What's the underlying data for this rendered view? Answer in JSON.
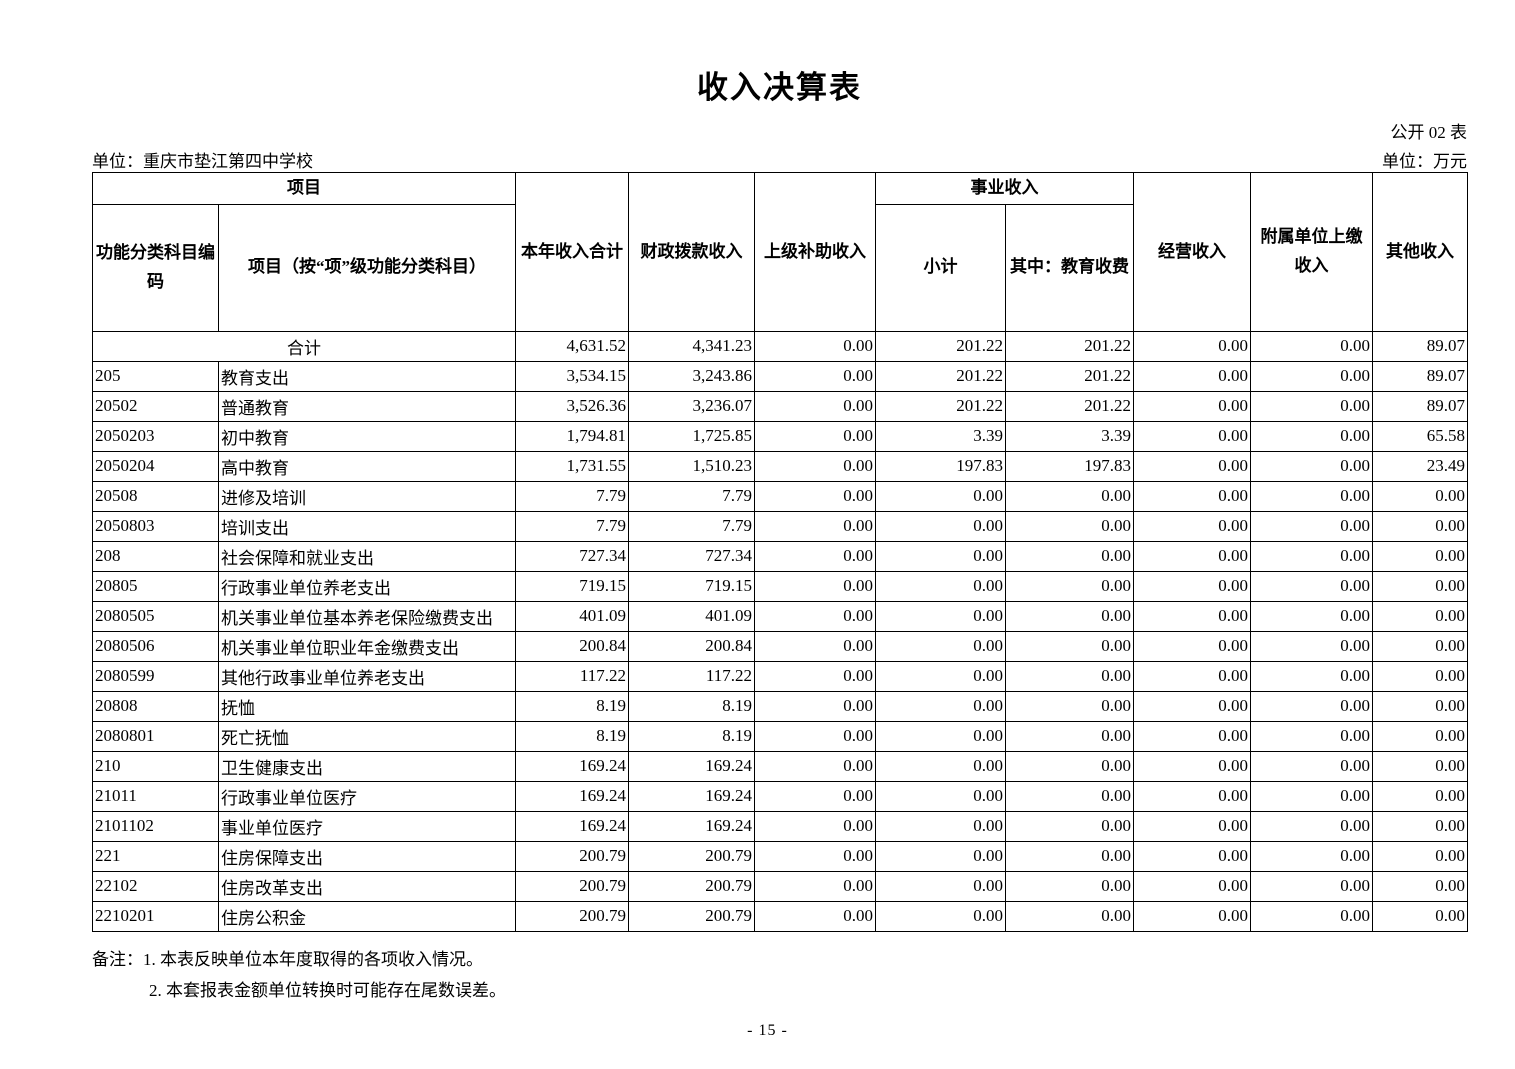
{
  "page": {
    "title": "收入决算表",
    "table_code": "公开 02 表",
    "unit_left": "单位：重庆市垫江第四中学校",
    "unit_right": "单位：万元",
    "notes": [
      "备注：1. 本表反映单位本年度取得的各项收入情况。",
      "2. 本套报表金额单位转换时可能存在尾数误差。"
    ],
    "page_number": "- 15 -"
  },
  "table": {
    "header": {
      "project_group": "项目",
      "code_col": "功能分类科目编码",
      "project_col": "项目（按“项”级功能分类科目）",
      "total_col": "本年收入合计",
      "fiscal_col": "财政拨款收入",
      "superior_col": "上级补助收入",
      "business_group": "事业收入",
      "subtotal_col": "小计",
      "education_fee_col": "其中：教育收费",
      "operating_col": "经营收入",
      "affiliated_col": "附属单位上缴收入",
      "other_col": "其他收入"
    },
    "rows": [
      {
        "code": "",
        "name": "合计",
        "merged": true,
        "bold": true,
        "values": [
          "4,631.52",
          "4,341.23",
          "0.00",
          "201.22",
          "201.22",
          "0.00",
          "0.00",
          "89.07"
        ]
      },
      {
        "code": "205",
        "name": "教育支出",
        "merged": false,
        "bold": true,
        "values": [
          "3,534.15",
          "3,243.86",
          "0.00",
          "201.22",
          "201.22",
          "0.00",
          "0.00",
          "89.07"
        ]
      },
      {
        "code": "20502",
        "name": "普通教育",
        "merged": false,
        "bold": true,
        "values": [
          "3,526.36",
          "3,236.07",
          "0.00",
          "201.22",
          "201.22",
          "0.00",
          "0.00",
          "89.07"
        ]
      },
      {
        "code": "2050203",
        "name": "初中教育",
        "merged": false,
        "bold": false,
        "values": [
          "1,794.81",
          "1,725.85",
          "0.00",
          "3.39",
          "3.39",
          "0.00",
          "0.00",
          "65.58"
        ]
      },
      {
        "code": "2050204",
        "name": "高中教育",
        "merged": false,
        "bold": false,
        "values": [
          "1,731.55",
          "1,510.23",
          "0.00",
          "197.83",
          "197.83",
          "0.00",
          "0.00",
          "23.49"
        ]
      },
      {
        "code": "20508",
        "name": "进修及培训",
        "merged": false,
        "bold": true,
        "values": [
          "7.79",
          "7.79",
          "0.00",
          "0.00",
          "0.00",
          "0.00",
          "0.00",
          "0.00"
        ]
      },
      {
        "code": "2050803",
        "name": "培训支出",
        "merged": false,
        "bold": false,
        "values": [
          "7.79",
          "7.79",
          "0.00",
          "0.00",
          "0.00",
          "0.00",
          "0.00",
          "0.00"
        ]
      },
      {
        "code": "208",
        "name": "社会保障和就业支出",
        "merged": false,
        "bold": true,
        "values": [
          "727.34",
          "727.34",
          "0.00",
          "0.00",
          "0.00",
          "0.00",
          "0.00",
          "0.00"
        ]
      },
      {
        "code": "20805",
        "name": "行政事业单位养老支出",
        "merged": false,
        "bold": true,
        "values": [
          "719.15",
          "719.15",
          "0.00",
          "0.00",
          "0.00",
          "0.00",
          "0.00",
          "0.00"
        ]
      },
      {
        "code": "2080505",
        "name": "机关事业单位基本养老保险缴费支出",
        "merged": false,
        "bold": false,
        "values": [
          "401.09",
          "401.09",
          "0.00",
          "0.00",
          "0.00",
          "0.00",
          "0.00",
          "0.00"
        ]
      },
      {
        "code": "2080506",
        "name": "机关事业单位职业年金缴费支出",
        "merged": false,
        "bold": false,
        "values": [
          "200.84",
          "200.84",
          "0.00",
          "0.00",
          "0.00",
          "0.00",
          "0.00",
          "0.00"
        ]
      },
      {
        "code": "2080599",
        "name": "其他行政事业单位养老支出",
        "merged": false,
        "bold": false,
        "values": [
          "117.22",
          "117.22",
          "0.00",
          "0.00",
          "0.00",
          "0.00",
          "0.00",
          "0.00"
        ]
      },
      {
        "code": "20808",
        "name": "抚恤",
        "merged": false,
        "bold": true,
        "values": [
          "8.19",
          "8.19",
          "0.00",
          "0.00",
          "0.00",
          "0.00",
          "0.00",
          "0.00"
        ]
      },
      {
        "code": "2080801",
        "name": "死亡抚恤",
        "merged": false,
        "bold": false,
        "values": [
          "8.19",
          "8.19",
          "0.00",
          "0.00",
          "0.00",
          "0.00",
          "0.00",
          "0.00"
        ]
      },
      {
        "code": "210",
        "name": "卫生健康支出",
        "merged": false,
        "bold": true,
        "values": [
          "169.24",
          "169.24",
          "0.00",
          "0.00",
          "0.00",
          "0.00",
          "0.00",
          "0.00"
        ]
      },
      {
        "code": "21011",
        "name": "行政事业单位医疗",
        "merged": false,
        "bold": true,
        "values": [
          "169.24",
          "169.24",
          "0.00",
          "0.00",
          "0.00",
          "0.00",
          "0.00",
          "0.00"
        ]
      },
      {
        "code": "2101102",
        "name": "事业单位医疗",
        "merged": false,
        "bold": false,
        "values": [
          "169.24",
          "169.24",
          "0.00",
          "0.00",
          "0.00",
          "0.00",
          "0.00",
          "0.00"
        ]
      },
      {
        "code": "221",
        "name": "住房保障支出",
        "merged": false,
        "bold": true,
        "values": [
          "200.79",
          "200.79",
          "0.00",
          "0.00",
          "0.00",
          "0.00",
          "0.00",
          "0.00"
        ]
      },
      {
        "code": "22102",
        "name": "住房改革支出",
        "merged": false,
        "bold": true,
        "values": [
          "200.79",
          "200.79",
          "0.00",
          "0.00",
          "0.00",
          "0.00",
          "0.00",
          "0.00"
        ]
      },
      {
        "code": "2210201",
        "name": "住房公积金",
        "merged": false,
        "bold": false,
        "values": [
          "200.79",
          "200.79",
          "0.00",
          "0.00",
          "0.00",
          "0.00",
          "0.00",
          "0.00"
        ]
      }
    ]
  }
}
